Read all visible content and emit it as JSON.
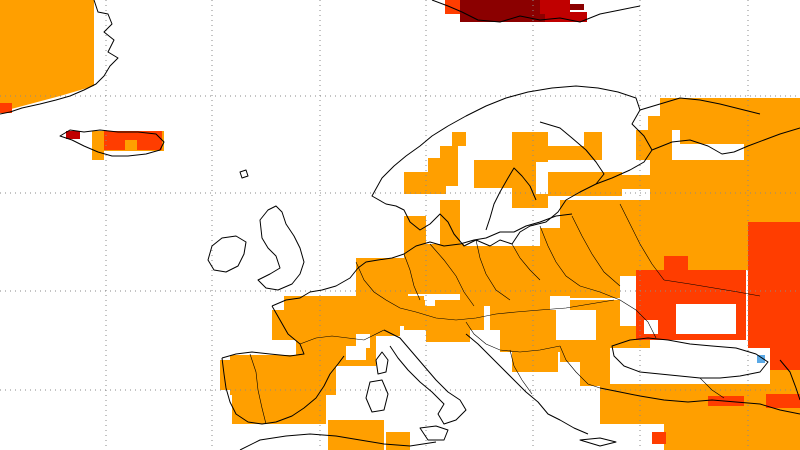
{
  "map": {
    "colors": {
      "background": "#ffffff",
      "anomaly_moderate": "#ff9f00",
      "anomaly_strong": "#ff3d00",
      "anomaly_very_strong": "#c00000",
      "anomaly_extreme": "#8b0000",
      "anomaly_negative": "#5aa9e6",
      "coastline": "#000000",
      "graticule": "#8a8a8a"
    },
    "graticule": "dotted"
  }
}
